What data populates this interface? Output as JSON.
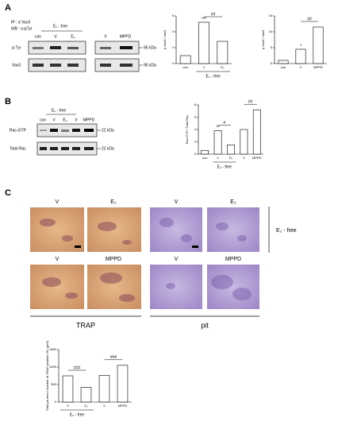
{
  "panel_labels": [
    "A",
    "B",
    "C"
  ],
  "blot_a": {
    "ip": "IP : α Vav3",
    "wb": "WB : α-pTyr",
    "group": "E₂ - free",
    "lanes": [
      "con",
      "V",
      "E₂",
      "V",
      "MPPD"
    ],
    "rows": [
      "p-Tyr",
      "Vav3"
    ],
    "markers": [
      "95 kDa",
      "95 kDa"
    ]
  },
  "blot_b": {
    "group": "E₂ - free",
    "lanes": [
      "con",
      "V",
      "E₂",
      "V",
      "MPPD"
    ],
    "rows": [
      "Rac-GTP",
      "Total Rac"
    ],
    "markers": [
      "22 kDa",
      "22 kDa"
    ]
  },
  "images": {
    "top": [
      "V",
      "E₂",
      "V",
      "E₂"
    ],
    "bottom": [
      "V",
      "MPPD",
      "V",
      "MPPD"
    ],
    "side": "E₂ - free",
    "groups": [
      "TRAP",
      "pit"
    ]
  },
  "chart_data": [
    {
      "type": "bar",
      "y_label": "p-Vav3 / Vav3",
      "categories": [
        "con",
        "V",
        "E₂"
      ],
      "values": [
        1,
        5.2,
        2.8
      ],
      "color": "#ffffff",
      "ylim": [
        0,
        6
      ],
      "yticks": [
        0,
        2,
        4,
        6
      ],
      "annotations": [
        "***",
        "##"
      ],
      "group_label": "E₂ - free"
    },
    {
      "type": "bar",
      "y_label": "p-Vav3 / Vav3",
      "categories": [
        "con",
        "V",
        "MPPD"
      ],
      "values": [
        1,
        4.5,
        11.5
      ],
      "color": "#ffffff",
      "ylim": [
        0,
        15
      ],
      "yticks": [
        0,
        5,
        10,
        15
      ],
      "annotations": [
        "*",
        "##"
      ]
    },
    {
      "type": "bar",
      "y_label": "Rac-GTP / Total Rac",
      "categories": [
        "con",
        "V",
        "E₂",
        "V",
        "MPPD"
      ],
      "values": [
        0.6,
        3.8,
        1.5,
        4,
        7.2
      ],
      "color": "#ffffff",
      "ylim": [
        0,
        8
      ],
      "yticks": [
        0,
        2,
        4,
        6,
        8
      ],
      "annotations": [
        "**",
        "#",
        "##"
      ],
      "group_label": "E₂ - free"
    },
    {
      "type": "bar",
      "y_label": "Total pit area / number of TRAP positive OC (μm²)",
      "categories": [
        "V",
        "E₂",
        "V",
        "MPPD"
      ],
      "values": [
        750,
        420,
        760,
        1050
      ],
      "color": "#ffffff",
      "ylim": [
        0,
        1500
      ],
      "yticks": [
        0,
        500,
        1000,
        1500
      ],
      "annotations": [
        "###",
        "###"
      ],
      "group_label": "E₂ - free"
    }
  ]
}
